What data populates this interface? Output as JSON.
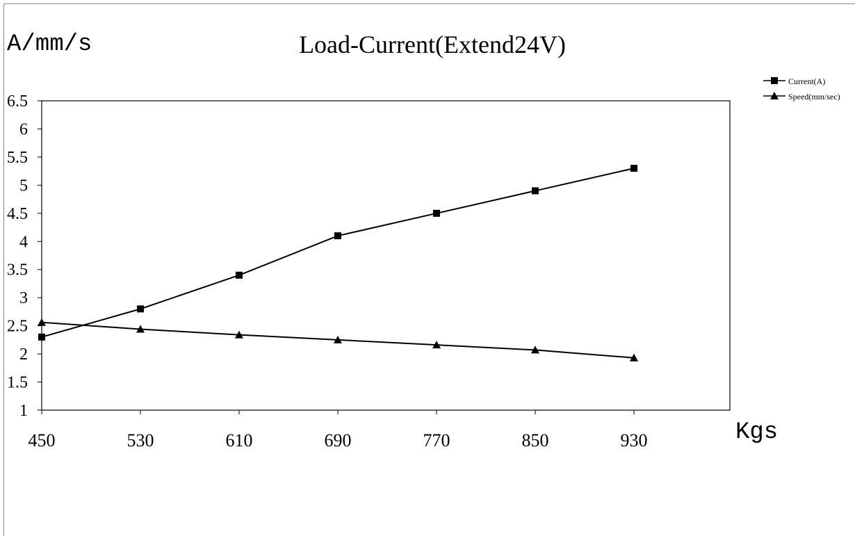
{
  "chart_data": {
    "type": "line",
    "title": "Load-Current(Extend24V)",
    "ylabel": "A/mm/s",
    "xlabel": "Kgs",
    "x": [
      450,
      530,
      610,
      690,
      770,
      850,
      930
    ],
    "x_tick_labels": [
      "450",
      "530",
      "610",
      "690",
      "770",
      "850",
      "930"
    ],
    "y_tick_labels": [
      "1",
      "1.5",
      "2",
      "2.5",
      "3",
      "3.5",
      "4",
      "4.5",
      "5",
      "5.5",
      "6",
      "6.5"
    ],
    "ylim": [
      1,
      6.5
    ],
    "grid": false,
    "legend_position": "top-right",
    "series": [
      {
        "name": "Current(A)",
        "marker": "square",
        "values": [
          2.3,
          2.8,
          3.4,
          4.1,
          4.5,
          4.9,
          5.3
        ]
      },
      {
        "name": "Speed(mm/sec)",
        "marker": "triangle",
        "values": [
          2.56,
          2.44,
          2.34,
          2.25,
          2.16,
          2.07,
          1.93
        ]
      }
    ]
  }
}
